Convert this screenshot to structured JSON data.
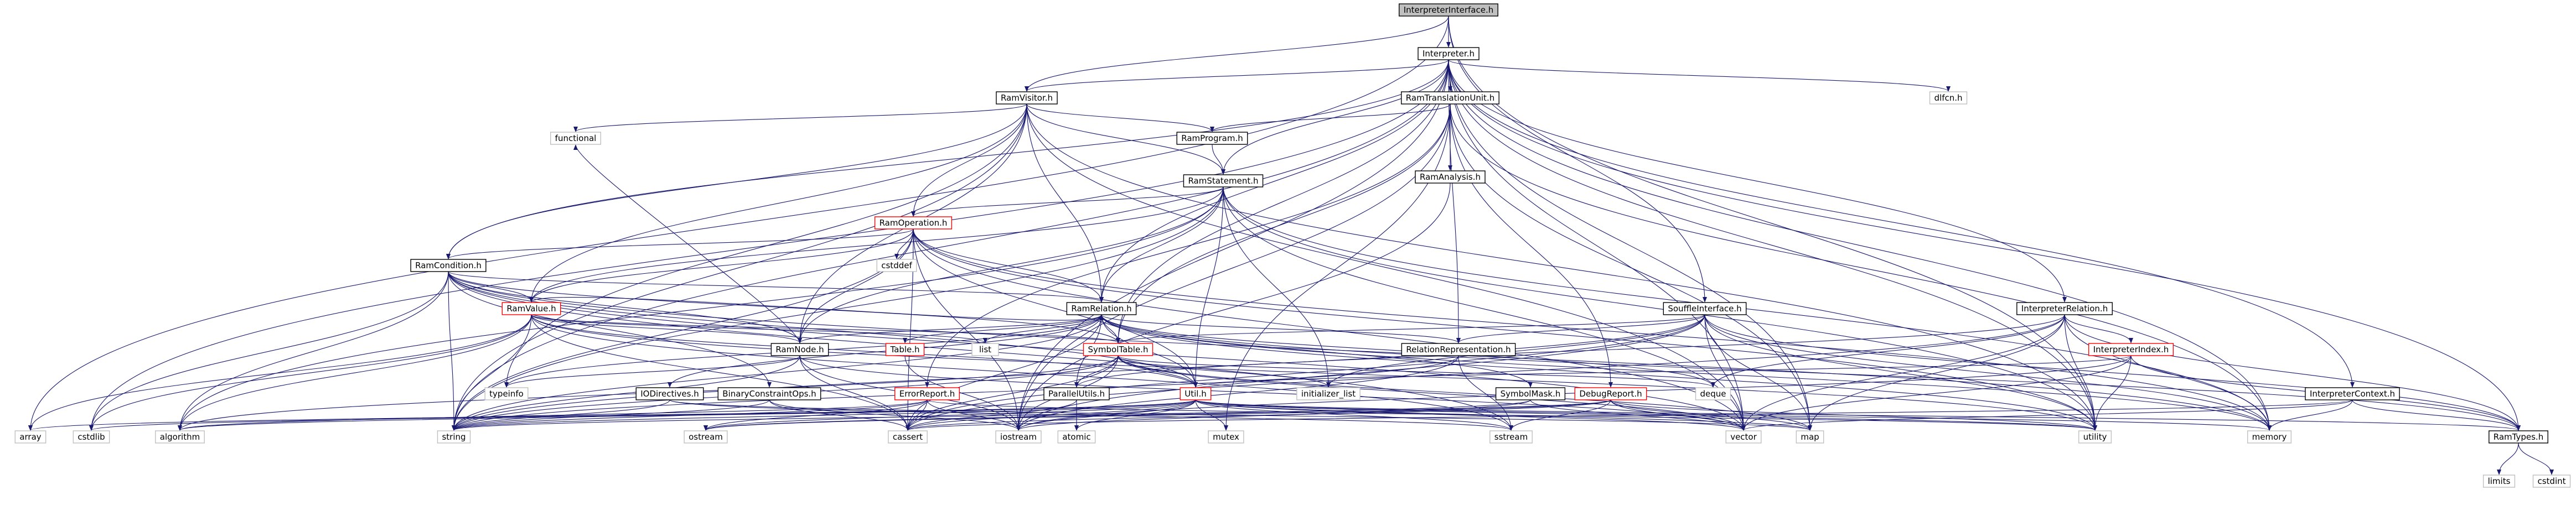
{
  "graph": {
    "title": "InterpreterInterface.h",
    "colors": {
      "edge": "#191970",
      "root_fill": "#bfbfbf",
      "node_border": "#000000",
      "external_border": "#bfbfbf",
      "warn_border": "#ff0000",
      "text": "#000000"
    },
    "nodes": [
      {
        "id": "root",
        "label": "InterpreterInterface.h",
        "kind": "root"
      },
      {
        "id": "interp",
        "label": "Interpreter.h",
        "kind": "local"
      },
      {
        "id": "ramtu",
        "label": "RamTranslationUnit.h",
        "kind": "local"
      },
      {
        "id": "ramvisitor",
        "label": "RamVisitor.h",
        "kind": "local"
      },
      {
        "id": "dlfcn",
        "label": "dlfcn.h",
        "kind": "system"
      },
      {
        "id": "functional",
        "label": "functional",
        "kind": "system"
      },
      {
        "id": "ramprogram",
        "label": "RamProgram.h",
        "kind": "local"
      },
      {
        "id": "ramanalysis",
        "label": "RamAnalysis.h",
        "kind": "local"
      },
      {
        "id": "ramstatement",
        "label": "RamStatement.h",
        "kind": "local"
      },
      {
        "id": "ramoperation",
        "label": "RamOperation.h",
        "kind": "partial"
      },
      {
        "id": "cstddef",
        "label": "cstddef",
        "kind": "system"
      },
      {
        "id": "ramcondition",
        "label": "RamCondition.h",
        "kind": "local"
      },
      {
        "id": "ramvalue",
        "label": "RamValue.h",
        "kind": "partial"
      },
      {
        "id": "ramrelation",
        "label": "RamRelation.h",
        "kind": "local"
      },
      {
        "id": "souffleint",
        "label": "SouffleInterface.h",
        "kind": "local"
      },
      {
        "id": "interprel",
        "label": "InterpreterRelation.h",
        "kind": "local"
      },
      {
        "id": "ramnode",
        "label": "RamNode.h",
        "kind": "local"
      },
      {
        "id": "list",
        "label": "list",
        "kind": "system"
      },
      {
        "id": "table",
        "label": "Table.h",
        "kind": "partial"
      },
      {
        "id": "symtable",
        "label": "SymbolTable.h",
        "kind": "partial"
      },
      {
        "id": "relrep",
        "label": "RelationRepresentation.h",
        "kind": "local"
      },
      {
        "id": "interpidx",
        "label": "InterpreterIndex.h",
        "kind": "partial"
      },
      {
        "id": "typeinfo",
        "label": "typeinfo",
        "kind": "system"
      },
      {
        "id": "iodir",
        "label": "IODirectives.h",
        "kind": "local"
      },
      {
        "id": "bcops",
        "label": "BinaryConstraintOps.h",
        "kind": "local"
      },
      {
        "id": "errreport",
        "label": "ErrorReport.h",
        "kind": "partial"
      },
      {
        "id": "parutils",
        "label": "ParallelUtils.h",
        "kind": "local"
      },
      {
        "id": "util",
        "label": "Util.h",
        "kind": "partial"
      },
      {
        "id": "initlist",
        "label": "initializer_list",
        "kind": "system"
      },
      {
        "id": "symmask",
        "label": "SymbolMask.h",
        "kind": "local"
      },
      {
        "id": "debugrep",
        "label": "DebugReport.h",
        "kind": "partial"
      },
      {
        "id": "deque",
        "label": "deque",
        "kind": "system"
      },
      {
        "id": "interpctx",
        "label": "InterpreterContext.h",
        "kind": "local"
      },
      {
        "id": "array",
        "label": "array",
        "kind": "system"
      },
      {
        "id": "cstdlib",
        "label": "cstdlib",
        "kind": "system"
      },
      {
        "id": "algorithm",
        "label": "algorithm",
        "kind": "system"
      },
      {
        "id": "string",
        "label": "string",
        "kind": "system"
      },
      {
        "id": "ostream",
        "label": "ostream",
        "kind": "system"
      },
      {
        "id": "cassert",
        "label": "cassert",
        "kind": "system"
      },
      {
        "id": "atomic",
        "label": "atomic",
        "kind": "system"
      },
      {
        "id": "iostream",
        "label": "iostream",
        "kind": "system"
      },
      {
        "id": "mutex",
        "label": "mutex",
        "kind": "system"
      },
      {
        "id": "sstream",
        "label": "sstream",
        "kind": "system"
      },
      {
        "id": "vector",
        "label": "vector",
        "kind": "system"
      },
      {
        "id": "map",
        "label": "map",
        "kind": "system"
      },
      {
        "id": "utility",
        "label": "utility",
        "kind": "system"
      },
      {
        "id": "memory",
        "label": "memory",
        "kind": "system"
      },
      {
        "id": "ramtypes",
        "label": "RamTypes.h",
        "kind": "local"
      },
      {
        "id": "limits",
        "label": "limits",
        "kind": "system"
      },
      {
        "id": "cstdint",
        "label": "cstdint",
        "kind": "system"
      }
    ],
    "edges": [
      [
        "root",
        "interp"
      ],
      [
        "root",
        "ramvisitor"
      ],
      [
        "root",
        "souffleint"
      ],
      [
        "root",
        "array"
      ],
      [
        "root",
        "utility"
      ],
      [
        "interp",
        "ramtu"
      ],
      [
        "interp",
        "dlfcn"
      ],
      [
        "interp",
        "ramstatement"
      ],
      [
        "interp",
        "ramcondition"
      ],
      [
        "interp",
        "ramrelation"
      ],
      [
        "interp",
        "interprel"
      ],
      [
        "interp",
        "interpctx"
      ],
      [
        "interp",
        "ramtypes"
      ],
      [
        "interp",
        "cstdlib"
      ],
      [
        "interp",
        "string"
      ],
      [
        "interp",
        "vector"
      ],
      [
        "interp",
        "map"
      ],
      [
        "interp",
        "memory"
      ],
      [
        "interp",
        "iostream"
      ],
      [
        "interp",
        "ramvisitor"
      ],
      [
        "interp",
        "utility"
      ],
      [
        "interp",
        "relrep"
      ],
      [
        "interp",
        "symtable"
      ],
      [
        "ramtu",
        "ramprogram"
      ],
      [
        "ramtu",
        "ramanalysis"
      ],
      [
        "ramtu",
        "debugrep"
      ],
      [
        "ramtu",
        "memory"
      ],
      [
        "ramtu",
        "map"
      ],
      [
        "ramtu",
        "iostream"
      ],
      [
        "ramtu",
        "mutex"
      ],
      [
        "ramtu",
        "errreport"
      ],
      [
        "ramtu",
        "symtable"
      ],
      [
        "ramvisitor",
        "functional"
      ],
      [
        "ramvisitor",
        "ramprogram"
      ],
      [
        "ramvisitor",
        "ramstatement"
      ],
      [
        "ramvisitor",
        "ramoperation"
      ],
      [
        "ramvisitor",
        "ramcondition"
      ],
      [
        "ramvisitor",
        "ramvalue"
      ],
      [
        "ramvisitor",
        "ramrelation"
      ],
      [
        "ramvisitor",
        "ramnode"
      ],
      [
        "ramvisitor",
        "typeinfo"
      ],
      [
        "ramvisitor",
        "vector"
      ],
      [
        "ramvisitor",
        "utility"
      ],
      [
        "ramvisitor",
        "string"
      ],
      [
        "ramprogram",
        "ramstatement"
      ],
      [
        "ramanalysis",
        "iostream"
      ],
      [
        "ramstatement",
        "ramoperation"
      ],
      [
        "ramstatement",
        "ramrelation"
      ],
      [
        "ramstatement",
        "ramnode"
      ],
      [
        "ramstatement",
        "ramvalue"
      ],
      [
        "ramstatement",
        "util"
      ],
      [
        "ramstatement",
        "algorithm"
      ],
      [
        "ramstatement",
        "vector"
      ],
      [
        "ramstatement",
        "memory"
      ],
      [
        "ramstatement",
        "string"
      ],
      [
        "ramstatement",
        "utility"
      ],
      [
        "ramstatement",
        "initlist"
      ],
      [
        "ramoperation",
        "cstddef"
      ],
      [
        "ramoperation",
        "ramcondition"
      ],
      [
        "ramoperation",
        "ramvalue"
      ],
      [
        "ramoperation",
        "ramrelation"
      ],
      [
        "ramoperation",
        "ramnode"
      ],
      [
        "ramoperation",
        "util"
      ],
      [
        "ramoperation",
        "cassert"
      ],
      [
        "ramoperation",
        "iostream"
      ],
      [
        "ramoperation",
        "vector"
      ],
      [
        "ramoperation",
        "memory"
      ],
      [
        "ramoperation",
        "utility"
      ],
      [
        "ramoperation",
        "string"
      ],
      [
        "ramcondition",
        "ramvalue"
      ],
      [
        "ramcondition",
        "ramrelation"
      ],
      [
        "ramcondition",
        "ramnode"
      ],
      [
        "ramcondition",
        "symtable"
      ],
      [
        "ramcondition",
        "bcops"
      ],
      [
        "ramcondition",
        "algorithm"
      ],
      [
        "ramcondition",
        "sstream"
      ],
      [
        "ramcondition",
        "string"
      ],
      [
        "ramcondition",
        "cstdlib"
      ],
      [
        "ramcondition",
        "util"
      ],
      [
        "ramcondition",
        "vector"
      ],
      [
        "ramcondition",
        "memory"
      ],
      [
        "ramvalue",
        "ramnode"
      ],
      [
        "ramvalue",
        "ramrelation"
      ],
      [
        "ramvalue",
        "symtable"
      ],
      [
        "ramvalue",
        "util"
      ],
      [
        "ramvalue",
        "array"
      ],
      [
        "ramvalue",
        "algorithm"
      ],
      [
        "ramvalue",
        "string"
      ],
      [
        "ramvalue",
        "sstream"
      ],
      [
        "ramvalue",
        "cstdlib"
      ],
      [
        "ramvalue",
        "utility"
      ],
      [
        "ramvalue",
        "list"
      ],
      [
        "ramvalue",
        "cassert"
      ],
      [
        "ramrelation",
        "ramnode"
      ],
      [
        "ramrelation",
        "list"
      ],
      [
        "ramrelation",
        "table"
      ],
      [
        "ramrelation",
        "symtable"
      ],
      [
        "ramrelation",
        "relrep"
      ],
      [
        "ramrelation",
        "symmask"
      ],
      [
        "ramrelation",
        "parutils"
      ],
      [
        "ramrelation",
        "util"
      ],
      [
        "ramrelation",
        "iodir"
      ],
      [
        "ramrelation",
        "ramtypes"
      ],
      [
        "ramrelation",
        "string"
      ],
      [
        "ramrelation",
        "cassert"
      ],
      [
        "ramrelation",
        "deque"
      ],
      [
        "ramrelation",
        "typeinfo"
      ],
      [
        "ramrelation",
        "memory"
      ],
      [
        "ramrelation",
        "utility"
      ],
      [
        "souffleint",
        "symtable"
      ],
      [
        "souffleint",
        "relrep"
      ],
      [
        "souffleint",
        "initlist"
      ],
      [
        "souffleint",
        "ramtypes"
      ],
      [
        "souffleint",
        "vector"
      ],
      [
        "souffleint",
        "map"
      ],
      [
        "souffleint",
        "iostream"
      ],
      [
        "souffleint",
        "cassert"
      ],
      [
        "souffleint",
        "utility"
      ],
      [
        "souffleint",
        "string"
      ],
      [
        "souffleint",
        "memory"
      ],
      [
        "interprel",
        "interpidx"
      ],
      [
        "interprel",
        "parutils"
      ],
      [
        "interprel",
        "ramtypes"
      ],
      [
        "interprel",
        "deque"
      ],
      [
        "interprel",
        "map"
      ],
      [
        "interprel",
        "vector"
      ],
      [
        "interprel",
        "memory"
      ],
      [
        "interprel",
        "utility"
      ],
      [
        "interprel",
        "cassert"
      ],
      [
        "ramnode",
        "typeinfo"
      ],
      [
        "ramnode",
        "cassert"
      ],
      [
        "ramnode",
        "iostream"
      ],
      [
        "ramnode",
        "string"
      ],
      [
        "ramnode",
        "vector"
      ],
      [
        "ramnode",
        "functional"
      ],
      [
        "table",
        "iostream"
      ],
      [
        "symtable",
        "parutils"
      ],
      [
        "symtable",
        "util"
      ],
      [
        "symtable",
        "cassert"
      ],
      [
        "symtable",
        "string"
      ],
      [
        "symtable",
        "deque"
      ],
      [
        "symtable",
        "map"
      ],
      [
        "symtable",
        "vector"
      ],
      [
        "symtable",
        "iostream"
      ],
      [
        "symtable",
        "initlist"
      ],
      [
        "symtable",
        "algorithm"
      ],
      [
        "relrep",
        "iostream"
      ],
      [
        "relrep",
        "sstream"
      ],
      [
        "relrep",
        "string"
      ],
      [
        "interpidx",
        "ramtypes"
      ],
      [
        "interpidx",
        "util"
      ],
      [
        "interpidx",
        "utility"
      ],
      [
        "interpidx",
        "vector"
      ],
      [
        "interpidx",
        "iostream"
      ],
      [
        "iodir",
        "string"
      ],
      [
        "iodir",
        "sstream"
      ],
      [
        "iodir",
        "map"
      ],
      [
        "bcops",
        "string"
      ],
      [
        "bcops",
        "iostream"
      ],
      [
        "bcops",
        "cassert"
      ],
      [
        "errreport",
        "string"
      ],
      [
        "errreport",
        "cassert"
      ],
      [
        "errreport",
        "algorithm"
      ],
      [
        "errreport",
        "iostream"
      ],
      [
        "errreport",
        "ostream"
      ],
      [
        "errreport",
        "utility"
      ],
      [
        "parutils",
        "atomic"
      ],
      [
        "parutils",
        "cassert"
      ],
      [
        "util",
        "algorithm"
      ],
      [
        "util",
        "cassert"
      ],
      [
        "util",
        "atomic"
      ],
      [
        "util",
        "iostream"
      ],
      [
        "util",
        "mutex"
      ],
      [
        "util",
        "sstream"
      ],
      [
        "util",
        "vector"
      ],
      [
        "util",
        "map"
      ],
      [
        "util",
        "memory"
      ],
      [
        "util",
        "string"
      ],
      [
        "util",
        "utility"
      ],
      [
        "util",
        "ramtypes"
      ],
      [
        "util",
        "array"
      ],
      [
        "util",
        "cstdlib"
      ],
      [
        "util",
        "ostream"
      ],
      [
        "symmask",
        "vector"
      ],
      [
        "symmask",
        "iostream"
      ],
      [
        "symmask",
        "ostream"
      ],
      [
        "debugrep",
        "cassert"
      ],
      [
        "debugrep",
        "vector"
      ],
      [
        "debugrep",
        "map"
      ],
      [
        "debugrep",
        "sstream"
      ],
      [
        "debugrep",
        "string"
      ],
      [
        "debugrep",
        "ostream"
      ],
      [
        "debugrep",
        "utility"
      ],
      [
        "interpctx",
        "ramtypes"
      ],
      [
        "interpctx",
        "vector"
      ],
      [
        "interpctx",
        "memory"
      ],
      [
        "interpctx",
        "cassert"
      ],
      [
        "ramtypes",
        "limits"
      ],
      [
        "ramtypes",
        "cstdint"
      ]
    ]
  }
}
